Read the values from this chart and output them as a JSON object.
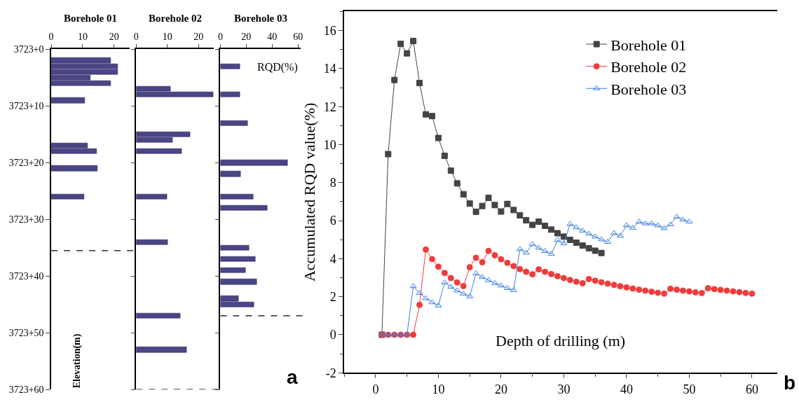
{
  "chart_data": [
    {
      "type": "bar",
      "orientation": "horizontal",
      "title": "Borehole 01",
      "ylabel": "Elevation(m)",
      "color": "#4a4585",
      "categories": [
        "3723+0",
        null,
        null,
        null,
        null,
        null,
        null,
        null,
        null,
        null,
        "3723+10",
        null,
        null,
        null,
        null,
        null,
        null,
        null,
        null,
        null,
        "3723+20",
        null,
        null,
        null,
        null,
        null,
        null,
        null,
        null,
        null,
        "3723+30",
        null,
        null,
        null,
        null,
        null,
        null,
        null,
        null,
        null,
        "3723+40",
        null,
        null,
        null,
        null,
        null,
        null,
        null,
        null,
        null,
        "3723+50",
        null,
        null,
        null,
        null,
        null,
        null,
        null,
        null,
        null,
        "3723+60"
      ],
      "values": [
        null,
        null,
        19.0,
        21.2,
        21.1,
        12.4,
        19.0,
        null,
        null,
        10.8,
        null,
        null,
        null,
        null,
        null,
        null,
        null,
        11.6,
        14.5,
        null,
        null,
        14.8,
        null,
        null,
        null,
        null,
        10.4,
        null,
        null,
        null,
        null,
        null,
        null,
        null,
        null,
        null,
        null,
        null,
        null,
        null,
        null,
        null,
        null,
        null,
        null,
        null,
        null,
        null,
        null,
        null,
        null,
        null,
        null,
        null,
        null,
        null,
        null,
        null,
        null,
        null,
        null
      ],
      "xlim": [
        0,
        25
      ],
      "xticks": [
        0,
        10,
        20
      ]
    },
    {
      "type": "bar",
      "orientation": "horizontal",
      "title": "Borehole 02",
      "color": "#4a4585",
      "tick_labels": "x",
      "categories": [
        null,
        null,
        null,
        null,
        null,
        null,
        null,
        null,
        null,
        null,
        null,
        null,
        null,
        null,
        null,
        null,
        null,
        null,
        null,
        null,
        null,
        null,
        null,
        null,
        null,
        null,
        null,
        null,
        null,
        null,
        null,
        null,
        null,
        null,
        null,
        null,
        null,
        null,
        null,
        null,
        null,
        null,
        null,
        null,
        null,
        null,
        null,
        null,
        null,
        null,
        null,
        null,
        null,
        null,
        null,
        null,
        null,
        null,
        null,
        null,
        null
      ],
      "values": [
        null,
        null,
        null,
        null,
        null,
        null,
        null,
        11.0,
        24.8,
        null,
        null,
        null,
        null,
        null,
        null,
        17.4,
        11.7,
        null,
        14.6,
        null,
        null,
        null,
        null,
        null,
        null,
        null,
        9.9,
        null,
        null,
        null,
        null,
        null,
        null,
        null,
        10.2,
        null,
        null,
        null,
        null,
        null,
        null,
        null,
        null,
        null,
        null,
        null,
        null,
        14.2,
        null,
        null,
        null,
        null,
        null,
        16.1,
        null,
        null,
        null,
        null,
        null,
        null,
        null
      ],
      "xlim": [
        0,
        25
      ],
      "xticks": [
        0,
        10,
        20
      ]
    },
    {
      "type": "bar",
      "orientation": "horizontal",
      "title": "Borehole 03",
      "color": "#4a4585",
      "tick_labels": "x",
      "categories": [
        null,
        null,
        null,
        null,
        null,
        null,
        null,
        null,
        null,
        null,
        null,
        null,
        null,
        null,
        null,
        null,
        null,
        null,
        null,
        null,
        null,
        null,
        null,
        null,
        null,
        null,
        null,
        null,
        null,
        null,
        null,
        null,
        null,
        null,
        null,
        null,
        null,
        null,
        null,
        null,
        null,
        null,
        null,
        null,
        null,
        null,
        null,
        null,
        null,
        null,
        null,
        null,
        null,
        null,
        null,
        null,
        null,
        null,
        null,
        null,
        null
      ],
      "values": [
        null,
        null,
        null,
        15.3,
        null,
        null,
        null,
        null,
        14.9,
        null,
        null,
        null,
        null,
        21.3,
        null,
        null,
        null,
        null,
        null,
        null,
        51.9,
        null,
        15.5,
        null,
        null,
        null,
        25.2,
        null,
        36.4,
        null,
        null,
        null,
        null,
        null,
        null,
        22.3,
        null,
        27.2,
        null,
        19.5,
        null,
        28.2,
        null,
        null,
        14.3,
        26.0,
        null,
        null,
        null,
        null,
        null,
        null,
        null,
        null,
        null,
        null,
        null,
        null,
        null,
        null,
        null
      ],
      "xlim": [
        0,
        62
      ],
      "xticks": [
        0,
        20,
        40,
        60
      ],
      "annotations": [
        "RQD(%)",
        "a"
      ]
    },
    {
      "type": "line",
      "xlabel": "Depth of drilling (m)",
      "ylabel": "Accumulated RQD value(%)",
      "legend": "top right",
      "line_style": "solid",
      "xlim": [
        -5,
        64
      ],
      "xticks": [
        0,
        10,
        20,
        30,
        40,
        50,
        60
      ],
      "ylim": [
        -2,
        17
      ],
      "yticks": [
        -2,
        0,
        2,
        4,
        6,
        8,
        10,
        12,
        14,
        16
      ],
      "annotations": [
        "b"
      ],
      "series": [
        {
          "name": "Borehole 01",
          "color": "#444444",
          "marker": "square",
          "x": [
            1,
            2,
            3,
            4,
            5,
            6,
            7,
            8,
            9,
            10,
            11,
            12,
            13,
            14,
            15,
            16,
            17,
            18,
            19,
            20,
            21,
            22,
            23,
            24,
            25,
            26,
            27,
            28,
            29,
            30,
            31,
            32,
            33,
            34,
            35,
            36
          ],
          "values": [
            0,
            9.5,
            13.4,
            15.3,
            14.8,
            15.45,
            13.24,
            11.59,
            11.5,
            10.35,
            9.41,
            8.63,
            7.96,
            7.39,
            6.9,
            6.47,
            6.77,
            7.2,
            6.82,
            6.48,
            6.88,
            6.56,
            6.28,
            6.02,
            5.78,
            5.95,
            5.73,
            5.53,
            5.34,
            5.16,
            4.99,
            4.84,
            4.69,
            4.55,
            4.42,
            4.3
          ]
        },
        {
          "name": "Borehole 02",
          "color": "#f03c3c",
          "marker": "circle",
          "x": [
            1,
            2,
            3,
            4,
            5,
            6,
            7,
            8,
            9,
            10,
            11,
            12,
            13,
            14,
            15,
            16,
            17,
            18,
            19,
            20,
            21,
            22,
            23,
            24,
            25,
            26,
            27,
            28,
            29,
            30,
            31,
            32,
            33,
            34,
            35,
            36,
            37,
            38,
            39,
            40,
            41,
            42,
            43,
            44,
            45,
            46,
            47,
            48,
            49,
            50,
            51,
            52,
            53,
            54,
            55,
            56,
            57,
            58,
            59,
            60
          ],
          "values": [
            0,
            0,
            0,
            0,
            0,
            0,
            1.57,
            4.48,
            3.98,
            3.58,
            3.25,
            2.98,
            2.75,
            2.56,
            3.55,
            4.05,
            3.81,
            4.41,
            4.18,
            3.97,
            3.78,
            3.61,
            3.45,
            3.31,
            3.18,
            3.44,
            3.31,
            3.19,
            3.08,
            2.98,
            2.88,
            2.79,
            2.71,
            2.93,
            2.84,
            2.76,
            2.69,
            2.62,
            2.55,
            2.49,
            2.43,
            2.37,
            2.32,
            2.26,
            2.21,
            2.16,
            2.42,
            2.37,
            2.32,
            2.28,
            2.23,
            2.19,
            2.45,
            2.4,
            2.36,
            2.32,
            2.28,
            2.24,
            2.2,
            2.16
          ]
        },
        {
          "name": "Borehole 03",
          "color": "#3f80e0",
          "marker": "triangle",
          "x": [
            1,
            2,
            3,
            4,
            5,
            6,
            7,
            8,
            9,
            10,
            11,
            12,
            13,
            14,
            15,
            16,
            17,
            18,
            19,
            20,
            21,
            22,
            23,
            24,
            25,
            26,
            27,
            28,
            29,
            30,
            31,
            32,
            33,
            34,
            35,
            36,
            37,
            38,
            39,
            40,
            41,
            42,
            43,
            44,
            45,
            46,
            47,
            48,
            49,
            50
          ],
          "values": [
            0,
            0,
            0,
            0,
            0,
            2.55,
            2.19,
            1.91,
            1.7,
            1.53,
            2.75,
            2.52,
            2.32,
            2.16,
            2.01,
            3.22,
            3.03,
            2.86,
            2.71,
            2.58,
            2.45,
            2.34,
            4.5,
            4.31,
            4.76,
            4.57,
            4.4,
            4.25,
            4.97,
            4.8,
            5.82,
            5.64,
            5.47,
            5.31,
            5.16,
            5.01,
            4.88,
            5.34,
            5.2,
            5.75,
            5.61,
            5.94,
            5.85,
            5.85,
            5.75,
            5.6,
            5.8,
            6.2,
            6.05,
            5.95
          ]
        }
      ]
    }
  ]
}
